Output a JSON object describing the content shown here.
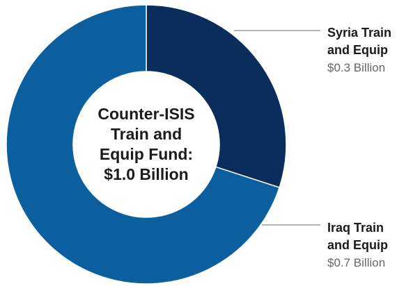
{
  "chart_data": {
    "type": "pie",
    "style": "donut",
    "center_label": [
      "Counter-ISIS",
      "Train and",
      "Equip Fund:",
      "$1.0 Billion"
    ],
    "slices": [
      {
        "name": "Syria Train and Equip",
        "label_lines": [
          "Syria Train",
          "and Equip"
        ],
        "value": 0.3,
        "value_label": "$0.3 Billion",
        "color": "#0a2d5c"
      },
      {
        "name": "Iraq Train and Equip",
        "label_lines": [
          "Iraq Train",
          "and Equip"
        ],
        "value": 0.7,
        "value_label": "$0.7 Billion",
        "color": "#0c5f9e"
      }
    ],
    "total": 1.0,
    "unit": "Billion USD"
  },
  "colors": {
    "leader_line": "#9a9a9a",
    "separator": "#ffffff"
  }
}
